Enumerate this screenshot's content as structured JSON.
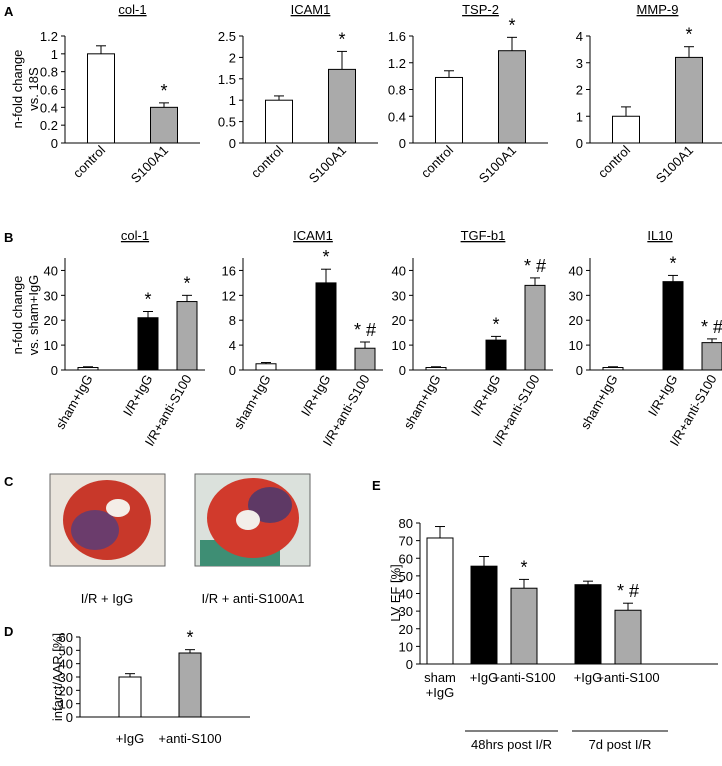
{
  "panel_labels": [
    "A",
    "B",
    "C",
    "D",
    "E"
  ],
  "images": [
    {
      "caption": "I/R + IgG"
    },
    {
      "caption": "I/R + anti-S100A1"
    }
  ],
  "chart_data": [
    {
      "type": "bar",
      "title": "col-1",
      "ylabel": [
        "n-fold change",
        "vs. 18S"
      ],
      "categories": [
        "control",
        "S100A1"
      ],
      "values": [
        1.0,
        0.4
      ],
      "errors": [
        0.09,
        0.05
      ],
      "colors": [
        "#ffffff",
        "#aaaaaa"
      ],
      "annotations": [
        null,
        "*"
      ],
      "ylim": [
        0,
        1.2
      ],
      "yticks": [
        0,
        0.2,
        0.4,
        0.6,
        0.8,
        1,
        1.2
      ]
    },
    {
      "type": "bar",
      "title": "ICAM1",
      "categories": [
        "control",
        "S100A1"
      ],
      "values": [
        1.0,
        1.72
      ],
      "errors": [
        0.1,
        0.42
      ],
      "colors": [
        "#ffffff",
        "#aaaaaa"
      ],
      "annotations": [
        null,
        "*"
      ],
      "ylim": [
        0,
        2.5
      ],
      "yticks": [
        0,
        0.5,
        1,
        1.5,
        2,
        2.5
      ]
    },
    {
      "type": "bar",
      "title": "TSP-2",
      "categories": [
        "control",
        "S100A1"
      ],
      "values": [
        0.98,
        1.38
      ],
      "errors": [
        0.1,
        0.2
      ],
      "colors": [
        "#ffffff",
        "#aaaaaa"
      ],
      "annotations": [
        null,
        "*"
      ],
      "ylim": [
        0,
        1.6
      ],
      "yticks": [
        0,
        0.4,
        0.8,
        1.2,
        1.6
      ]
    },
    {
      "type": "bar",
      "title": "MMP-9",
      "categories": [
        "control",
        "S100A1"
      ],
      "values": [
        1.0,
        3.2
      ],
      "errors": [
        0.35,
        0.4
      ],
      "colors": [
        "#ffffff",
        "#aaaaaa"
      ],
      "annotations": [
        null,
        "*"
      ],
      "ylim": [
        0,
        4
      ],
      "yticks": [
        0,
        1,
        2,
        3,
        4
      ]
    },
    {
      "type": "bar",
      "title": "col-1",
      "ylabel": [
        "n-fold change",
        "vs. sham+IgG"
      ],
      "categories": [
        "sham+IgG",
        "I/R+IgG",
        "I/R+anti-S100"
      ],
      "values": [
        1,
        21,
        27.5
      ],
      "errors": [
        0.3,
        2.5,
        2.5
      ],
      "colors": [
        "#ffffff",
        "#000000",
        "#aaaaaa"
      ],
      "annotations": [
        null,
        "*",
        "*"
      ],
      "ylim": [
        0,
        45
      ],
      "yticks": [
        0,
        10,
        20,
        30,
        40
      ]
    },
    {
      "type": "bar",
      "title": "ICAM1",
      "categories": [
        "sham+IgG",
        "I/R+IgG",
        "I/R+anti-S100"
      ],
      "values": [
        1,
        14,
        3.5
      ],
      "errors": [
        0.2,
        2.2,
        1
      ],
      "colors": [
        "#ffffff",
        "#000000",
        "#aaaaaa"
      ],
      "annotations": [
        null,
        "*",
        "* #"
      ],
      "ylim": [
        0,
        18
      ],
      "yticks": [
        0,
        4,
        8,
        12,
        16
      ]
    },
    {
      "type": "bar",
      "title": "TGF-b1",
      "categories": [
        "sham+IgG",
        "I/R+IgG",
        "I/R+anti-S100"
      ],
      "values": [
        1,
        12,
        34
      ],
      "errors": [
        0.3,
        1.5,
        3
      ],
      "colors": [
        "#ffffff",
        "#000000",
        "#aaaaaa"
      ],
      "annotations": [
        null,
        "*",
        "* #"
      ],
      "ylim": [
        0,
        45
      ],
      "yticks": [
        0,
        10,
        20,
        30,
        40
      ]
    },
    {
      "type": "bar",
      "title": "IL10",
      "categories": [
        "sham+IgG",
        "I/R+IgG",
        "I/R+anti-S100"
      ],
      "values": [
        1,
        35.5,
        11
      ],
      "errors": [
        0.3,
        2.5,
        1.5
      ],
      "colors": [
        "#ffffff",
        "#000000",
        "#aaaaaa"
      ],
      "annotations": [
        null,
        "*",
        "* #"
      ],
      "ylim": [
        0,
        45
      ],
      "yticks": [
        0,
        10,
        20,
        30,
        40
      ]
    },
    {
      "type": "bar",
      "ylabel": [
        "infarct/AAR [%]"
      ],
      "categories": [
        "+IgG",
        "+anti-S100"
      ],
      "values": [
        30,
        48
      ],
      "errors": [
        2.5,
        2.5
      ],
      "colors": [
        "#ffffff",
        "#aaaaaa"
      ],
      "annotations": [
        null,
        "*"
      ],
      "ylim": [
        0,
        60
      ],
      "yticks": [
        0,
        10,
        20,
        30,
        40,
        50,
        60
      ]
    },
    {
      "type": "bar",
      "ylabel": [
        "LV EF [%]"
      ],
      "categories": [
        "sham +IgG",
        "+IgG",
        "+anti-S100",
        "+IgG",
        "+anti-S100"
      ],
      "values": [
        71.5,
        55.5,
        43,
        45,
        30.5
      ],
      "errors": [
        6.5,
        5.5,
        5,
        2,
        4
      ],
      "colors": [
        "#ffffff",
        "#000000",
        "#aaaaaa",
        "#000000",
        "#aaaaaa"
      ],
      "annotations": [
        null,
        null,
        "*",
        null,
        "* #"
      ],
      "groups": [
        "48hrs post I/R",
        "7d post I/R"
      ],
      "ylim": [
        0,
        80
      ],
      "yticks": [
        0,
        10,
        20,
        30,
        40,
        50,
        60,
        70,
        80
      ]
    }
  ]
}
